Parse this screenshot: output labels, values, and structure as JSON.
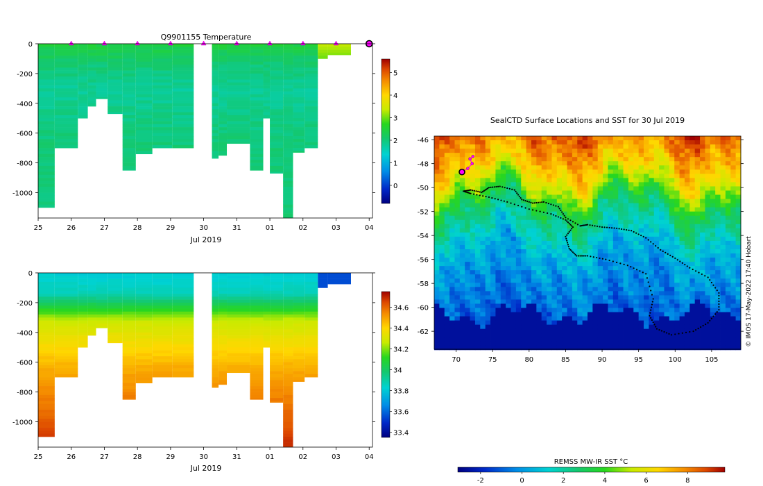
{
  "chart_data": [
    {
      "type": "heatmap",
      "title": "Q9901155  Temperature",
      "variable": "temperature",
      "x_tick_labels": [
        "25",
        "26",
        "27",
        "28",
        "29",
        "30",
        "31",
        "01",
        "02",
        "03",
        "04"
      ],
      "x_label": "Jul 2019",
      "y_tick_values": [
        0,
        -200,
        -400,
        -600,
        -800,
        -1000
      ],
      "y_tick_labels": [
        "0",
        "-200",
        "-400",
        "-600",
        "-800",
        "-1000"
      ],
      "ylim": [
        -1170,
        0
      ],
      "xlim_days": [
        0,
        10.1
      ],
      "colorbar": {
        "min": -0.8,
        "max": 5.6,
        "ticks": [
          0,
          1,
          2,
          3,
          4,
          5
        ],
        "tick_labels": [
          "0",
          "1",
          "2",
          "3",
          "4",
          "5"
        ]
      },
      "surface_markers_days": [
        1,
        2,
        3,
        4,
        5,
        6,
        7,
        8,
        9
      ],
      "current_marker_day": 10,
      "profiles": [
        {
          "x0": 0.0,
          "x1": 0.5,
          "bottom": -1100
        },
        {
          "x0": 0.5,
          "x1": 1.2,
          "bottom": -700
        },
        {
          "x0": 1.2,
          "x1": 1.5,
          "bottom": -500
        },
        {
          "x0": 1.5,
          "x1": 1.75,
          "bottom": -420
        },
        {
          "x0": 1.75,
          "x1": 2.1,
          "bottom": -370
        },
        {
          "x0": 2.1,
          "x1": 2.55,
          "bottom": -470
        },
        {
          "x0": 2.55,
          "x1": 2.95,
          "bottom": -850
        },
        {
          "x0": 2.95,
          "x1": 3.45,
          "bottom": -740
        },
        {
          "x0": 3.45,
          "x1": 4.05,
          "bottom": -700
        },
        {
          "x0": 4.05,
          "x1": 4.7,
          "bottom": -700
        },
        {
          "x0": 5.25,
          "x1": 5.45,
          "bottom": -770
        },
        {
          "x0": 5.45,
          "x1": 5.7,
          "bottom": -750
        },
        {
          "x0": 5.7,
          "x1": 6.4,
          "bottom": -670
        },
        {
          "x0": 6.4,
          "x1": 6.8,
          "bottom": -850
        },
        {
          "x0": 6.8,
          "x1": 7.0,
          "bottom": -500
        },
        {
          "x0": 7.0,
          "x1": 7.4,
          "bottom": -870
        },
        {
          "x0": 7.4,
          "x1": 7.7,
          "bottom": -1170
        },
        {
          "x0": 7.7,
          "x1": 8.05,
          "bottom": -730
        },
        {
          "x0": 8.05,
          "x1": 8.45,
          "bottom": -700
        },
        {
          "x0": 8.45,
          "x1": 8.75,
          "bottom": -100
        },
        {
          "x0": 8.75,
          "x1": 9.45,
          "bottom": -75
        }
      ]
    },
    {
      "type": "heatmap",
      "title": "",
      "variable": "salinity",
      "x_tick_labels": [
        "25",
        "26",
        "27",
        "28",
        "29",
        "30",
        "31",
        "01",
        "02",
        "03",
        "04"
      ],
      "x_label": "Jul 2019",
      "y_tick_values": [
        0,
        -200,
        -400,
        -600,
        -800,
        -1000
      ],
      "y_tick_labels": [
        "0",
        "-200",
        "-400",
        "-600",
        "-800",
        "-1000"
      ],
      "ylim": [
        -1170,
        0
      ],
      "xlim_days": [
        0,
        10.1
      ],
      "colorbar": {
        "min": 33.35,
        "max": 34.75,
        "ticks": [
          33.4,
          33.6,
          33.8,
          34,
          34.2,
          34.4,
          34.6
        ],
        "tick_labels": [
          "33.4",
          "33.6",
          "33.8",
          "34",
          "34.2",
          "34.4",
          "34.6"
        ]
      },
      "profiles": [
        {
          "x0": 0.0,
          "x1": 0.5,
          "bottom": -1100
        },
        {
          "x0": 0.5,
          "x1": 1.2,
          "bottom": -700
        },
        {
          "x0": 1.2,
          "x1": 1.5,
          "bottom": -500
        },
        {
          "x0": 1.5,
          "x1": 1.75,
          "bottom": -420
        },
        {
          "x0": 1.75,
          "x1": 2.1,
          "bottom": -370
        },
        {
          "x0": 2.1,
          "x1": 2.55,
          "bottom": -470
        },
        {
          "x0": 2.55,
          "x1": 2.95,
          "bottom": -850
        },
        {
          "x0": 2.95,
          "x1": 3.45,
          "bottom": -740
        },
        {
          "x0": 3.45,
          "x1": 4.05,
          "bottom": -700
        },
        {
          "x0": 4.05,
          "x1": 4.7,
          "bottom": -700
        },
        {
          "x0": 5.25,
          "x1": 5.45,
          "bottom": -770
        },
        {
          "x0": 5.45,
          "x1": 5.7,
          "bottom": -750
        },
        {
          "x0": 5.7,
          "x1": 6.4,
          "bottom": -670
        },
        {
          "x0": 6.4,
          "x1": 6.8,
          "bottom": -850
        },
        {
          "x0": 6.8,
          "x1": 7.0,
          "bottom": -500
        },
        {
          "x0": 7.0,
          "x1": 7.4,
          "bottom": -870
        },
        {
          "x0": 7.4,
          "x1": 7.7,
          "bottom": -1170
        },
        {
          "x0": 7.7,
          "x1": 8.05,
          "bottom": -730
        },
        {
          "x0": 8.05,
          "x1": 8.45,
          "bottom": -700
        },
        {
          "x0": 8.45,
          "x1": 8.75,
          "bottom": -100
        },
        {
          "x0": 8.75,
          "x1": 9.45,
          "bottom": -75
        }
      ]
    },
    {
      "type": "map",
      "title": "SealCTD Surface Locations and SST for 30 Jul 2019",
      "xlim": [
        67,
        109
      ],
      "ylim": [
        -63.5,
        -45.7
      ],
      "x_ticks": [
        70,
        75,
        80,
        85,
        90,
        95,
        100,
        105
      ],
      "x_tick_labels": [
        "70",
        "75",
        "80",
        "85",
        "90",
        "95",
        "100",
        "105"
      ],
      "y_ticks": [
        -46,
        -48,
        -50,
        -52,
        -54,
        -56,
        -58,
        -60,
        -62
      ],
      "y_tick_labels": [
        "-46",
        "-48",
        "-50",
        "-52",
        "-54",
        "-56",
        "-58",
        "-60",
        "-62"
      ],
      "track_lon_lat": [
        [
          71,
          -50.3
        ],
        [
          72,
          -50.2
        ],
        [
          73.5,
          -50.4
        ],
        [
          74.5,
          -50
        ],
        [
          76,
          -49.9
        ],
        [
          78,
          -50.2
        ],
        [
          79,
          -51
        ],
        [
          80.5,
          -51.3
        ],
        [
          82,
          -51.2
        ],
        [
          84,
          -51.6
        ],
        [
          85,
          -52.5
        ],
        [
          87,
          -53.2
        ],
        [
          88,
          -53.1
        ],
        [
          90,
          -53.3
        ],
        [
          92,
          -53.4
        ],
        [
          94,
          -53.6
        ],
        [
          96,
          -54.2
        ],
        [
          98,
          -55.2
        ],
        [
          100,
          -55.9
        ],
        [
          102,
          -56.7
        ],
        [
          104.5,
          -57.5
        ],
        [
          106,
          -58.8
        ],
        [
          106,
          -60.2
        ],
        [
          104.5,
          -61.3
        ],
        [
          102.5,
          -62
        ],
        [
          99.5,
          -62.3
        ],
        [
          97.5,
          -61.8
        ],
        [
          96.5,
          -60.7
        ],
        [
          97,
          -59.3
        ],
        [
          96,
          -57.2
        ],
        [
          93.5,
          -56.5
        ],
        [
          90.5,
          -56
        ],
        [
          88,
          -55.7
        ],
        [
          86.5,
          -55.7
        ],
        [
          85.5,
          -55.1
        ],
        [
          85,
          -54.1
        ],
        [
          86,
          -53.3
        ],
        [
          85,
          -52.7
        ],
        [
          83,
          -52.2
        ],
        [
          80,
          -51.8
        ],
        [
          77,
          -51.2
        ],
        [
          74.5,
          -50.8
        ],
        [
          72,
          -50.5
        ],
        [
          71,
          -50.3
        ]
      ],
      "recent_positions_lon_lat": [
        [
          70.8,
          -48.7
        ],
        [
          71.6,
          -48.4
        ],
        [
          72.2,
          -48.0
        ],
        [
          71.9,
          -47.6
        ],
        [
          72.3,
          -47.4
        ]
      ],
      "current_position_lon_lat": [
        70.8,
        -48.7
      ]
    }
  ],
  "sst_colorbar": {
    "label": "REMSS MW-IR SST °C",
    "min": -3.1,
    "max": 9.8,
    "ticks": [
      -2,
      0,
      2,
      4,
      6,
      8
    ],
    "tick_labels": [
      "-2",
      "0",
      "2",
      "4",
      "6",
      "8"
    ]
  },
  "credit": "© IMOS 17-May-2022 17:40 Hobart"
}
